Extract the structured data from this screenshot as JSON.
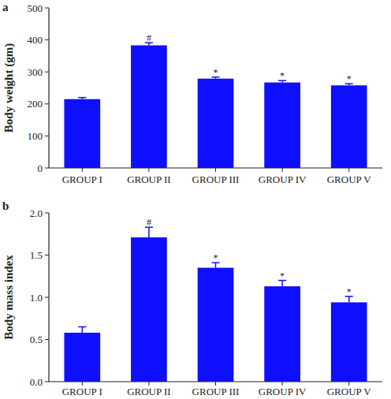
{
  "chart_data": [
    {
      "type": "bar",
      "panel": "a",
      "y_label": "Body weight (gm)",
      "categories": [
        "GROUP I",
        "GROUP II",
        "GROUP III",
        "GROUP IV",
        "GROUP V"
      ],
      "values": [
        215,
        383,
        279,
        267,
        258
      ],
      "errors": [
        5,
        8,
        5,
        6,
        5
      ],
      "significance": [
        null,
        "#",
        "*",
        "*",
        "*"
      ],
      "color": "#0f0fff",
      "ylim": [
        0,
        500
      ],
      "yticks": [
        0,
        100,
        200,
        300,
        400,
        500
      ],
      "grid": false
    },
    {
      "type": "bar",
      "panel": "b",
      "y_label": "Body mass index",
      "categories": [
        "GROUP I",
        "GROUP II",
        "GROUP III",
        "GROUP IV",
        "GROUP V"
      ],
      "values": [
        0.58,
        1.71,
        1.35,
        1.13,
        0.94
      ],
      "errors": [
        0.07,
        0.12,
        0.06,
        0.07,
        0.07
      ],
      "significance": [
        null,
        "#",
        "*",
        "*",
        "*"
      ],
      "color": "#0f0fff",
      "ylim": [
        0,
        2
      ],
      "yticks": [
        {
          "value": 0,
          "label": "0.0"
        },
        0.5,
        {
          "value": 1,
          "label": "1.0"
        },
        1.5,
        {
          "value": 2,
          "label": "2.0"
        }
      ],
      "grid": false
    }
  ]
}
